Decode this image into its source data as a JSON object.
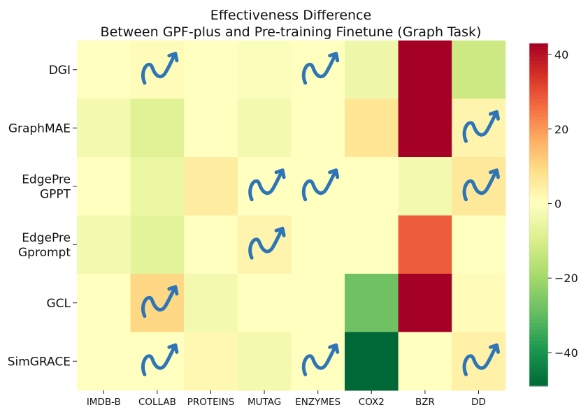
{
  "chart_data": {
    "type": "heatmap",
    "title_line1": "Effectiveness Difference",
    "title_line2": "Between GPF-plus and Pre-training Finetune (Graph Task)",
    "columns": [
      "IMDB-B",
      "COLLAB",
      "PROTEINS",
      "MUTAG",
      "ENZYMES",
      "COX2",
      "BZR",
      "DD"
    ],
    "rows": [
      {
        "lines": [
          "DGI"
        ]
      },
      {
        "lines": [
          "GraphMAE"
        ]
      },
      {
        "lines": [
          "EdgePre",
          "GPPT"
        ]
      },
      {
        "lines": [
          "EdgePre",
          "Gprompt"
        ]
      },
      {
        "lines": [
          "GCL"
        ]
      },
      {
        "lines": [
          "SimGRACE"
        ]
      }
    ],
    "values": [
      [
        0,
        1,
        0,
        -1,
        0,
        -4,
        43,
        -12
      ],
      [
        -3,
        -8,
        0,
        -3,
        0,
        7,
        43,
        3
      ],
      [
        0,
        -5,
        5,
        0,
        0,
        0,
        -3,
        6
      ],
      [
        -3,
        -7,
        0,
        3,
        0,
        0,
        28,
        0
      ],
      [
        0,
        10,
        -3,
        0,
        0,
        -28,
        43,
        1
      ],
      [
        0,
        0,
        2,
        -3,
        0,
        -49,
        0,
        4
      ]
    ],
    "arrow_marker": "trend-arrow-icon",
    "arrows": [
      [
        0,
        1
      ],
      [
        0,
        4
      ],
      [
        1,
        7
      ],
      [
        2,
        3
      ],
      [
        2,
        4
      ],
      [
        2,
        7
      ],
      [
        3,
        3
      ],
      [
        4,
        1
      ],
      [
        5,
        1
      ],
      [
        5,
        4
      ],
      [
        5,
        7
      ]
    ],
    "colorbar": {
      "vmin": -49,
      "vmax": 43,
      "ticks": [
        40,
        20,
        0,
        -20,
        -40
      ],
      "tick_labels": [
        "40",
        "20",
        "0",
        "−20",
        "−40"
      ],
      "colormap": "RdYlGn_r"
    },
    "arrow_color": "#2e75b6"
  }
}
